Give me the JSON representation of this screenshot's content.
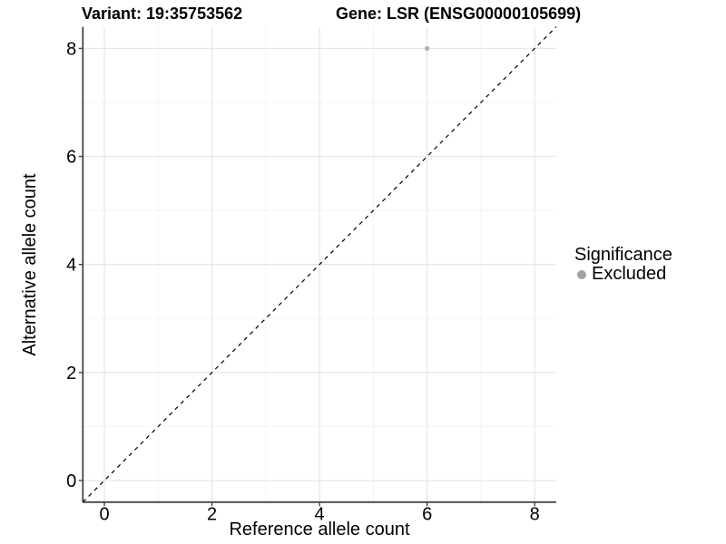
{
  "header": {
    "variant_title": "Variant: 19:35753562",
    "gene_title": "Gene: LSR (ENSG00000105699)"
  },
  "axes": {
    "x_label": "Reference allele count",
    "y_label": "Alternative allele count"
  },
  "legend": {
    "title": "Significance",
    "items": [
      {
        "label": "Excluded",
        "color": "#a3a3a3"
      }
    ]
  },
  "chart_data": {
    "type": "scatter",
    "title": "Variant: 19:35753562  |  Gene: LSR (ENSG00000105699)",
    "xlabel": "Reference allele count",
    "ylabel": "Alternative allele count",
    "xlim": [
      -0.4,
      8.4
    ],
    "ylim": [
      -0.4,
      8.4
    ],
    "x_ticks": [
      0,
      2,
      4,
      6,
      8
    ],
    "y_ticks": [
      0,
      2,
      4,
      6,
      8
    ],
    "x_minor_ticks": [
      1,
      3,
      5,
      7
    ],
    "y_minor_ticks": [
      1,
      3,
      5,
      7
    ],
    "grid": "on",
    "legend_position": "right",
    "legend_title": "Significance",
    "series": [
      {
        "name": "Excluded",
        "color": "#b3b3b3",
        "points": [
          [
            6,
            8
          ]
        ]
      }
    ],
    "reference_line": {
      "type": "identity y=x",
      "style": "dashed",
      "color": "#000000",
      "from": [
        -0.4,
        -0.4
      ],
      "to": [
        8.4,
        8.4
      ]
    }
  },
  "colors": {
    "background": "#ffffff",
    "grid_major": "#e7e7e7",
    "grid_minor": "#f3f3f3",
    "axis_line": "#454545",
    "tick_mark": "#454545",
    "text": "#000000",
    "point": "#b3b3b3",
    "legend_point": "#a3a3a3",
    "ref_line": "#000000"
  }
}
